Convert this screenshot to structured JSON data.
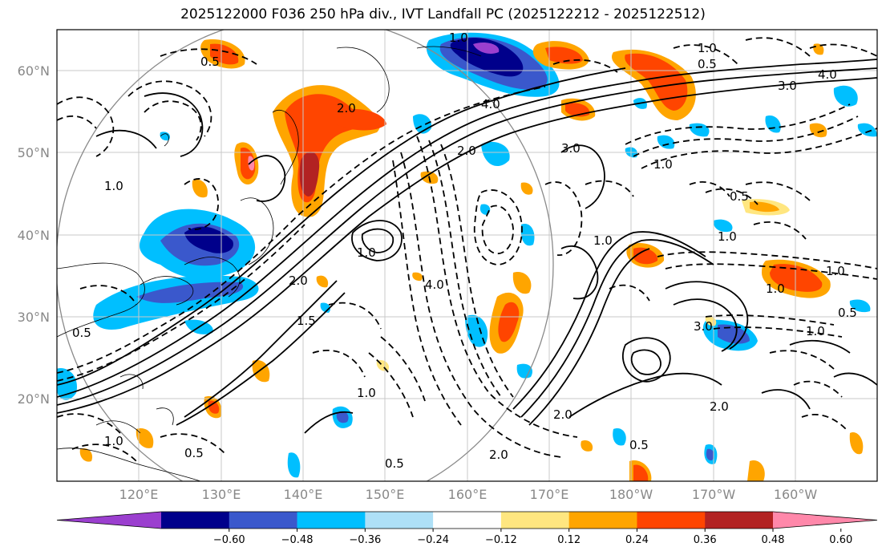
{
  "title": "2025122000 F036 250 hPa div., IVT Landfall PC (2025122212 - 2025122512)",
  "lat_ticks": [
    "60°N",
    "50°N",
    "40°N",
    "30°N",
    "20°N"
  ],
  "lon_ticks": [
    "120°E",
    "130°E",
    "140°E",
    "150°E",
    "160°E",
    "170°E",
    "180°W",
    "170°W",
    "160°W"
  ],
  "colorbar": {
    "labels": [
      "−0.60",
      "−0.48",
      "−0.36",
      "−0.24",
      "−0.12",
      "0.12",
      "0.24",
      "0.36",
      "0.48",
      "0.60"
    ],
    "colors": [
      "#9b3fcf",
      "#00008b",
      "#3a58cc",
      "#00bfff",
      "#aee0f7",
      "#ffffff",
      "#ffe680",
      "#ffa500",
      "#ff4500",
      "#b22222",
      "#ff88aa"
    ]
  },
  "contour_labels": [
    "1.0",
    "0.5",
    "2.0",
    "3.0",
    "4.0",
    "1.5"
  ]
}
